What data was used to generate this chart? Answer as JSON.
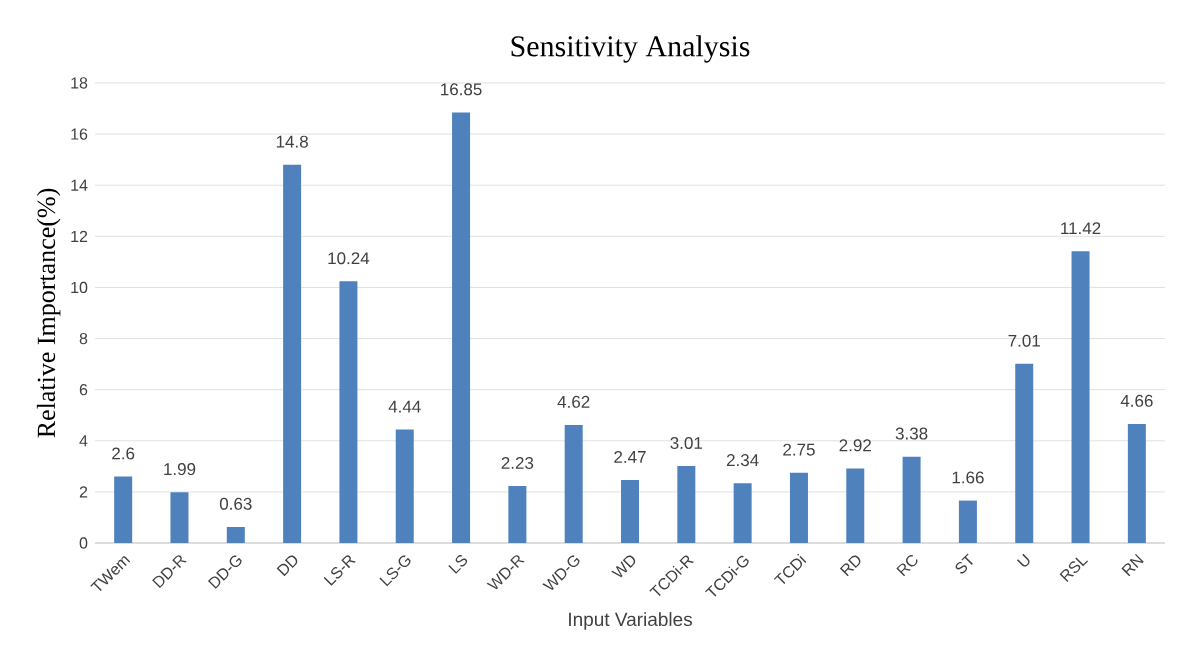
{
  "chart_data": {
    "type": "bar",
    "title": "Sensitivity Analysis",
    "xlabel": "Input Variables",
    "ylabel": "Relative Importance(%)",
    "categories": [
      "TWem",
      "DD-R",
      "DD-G",
      "DD",
      "LS-R",
      "LS-G",
      "LS",
      "WD-R",
      "WD-G",
      "WD",
      "TCDi-R",
      "TCDi-G",
      "TCDi",
      "RD",
      "RC",
      "ST",
      "U",
      "RSL",
      "RN"
    ],
    "values": [
      2.6,
      1.99,
      0.63,
      14.8,
      10.24,
      4.44,
      16.85,
      2.23,
      4.62,
      2.47,
      3.01,
      2.34,
      2.75,
      2.92,
      3.38,
      1.66,
      7.01,
      11.42,
      4.66
    ],
    "color": "#4f81bd",
    "ylim": [
      0,
      18
    ],
    "yticks": [
      0,
      2,
      4,
      6,
      8,
      10,
      12,
      14,
      16,
      18
    ],
    "grid": "y",
    "data_labels": true
  }
}
